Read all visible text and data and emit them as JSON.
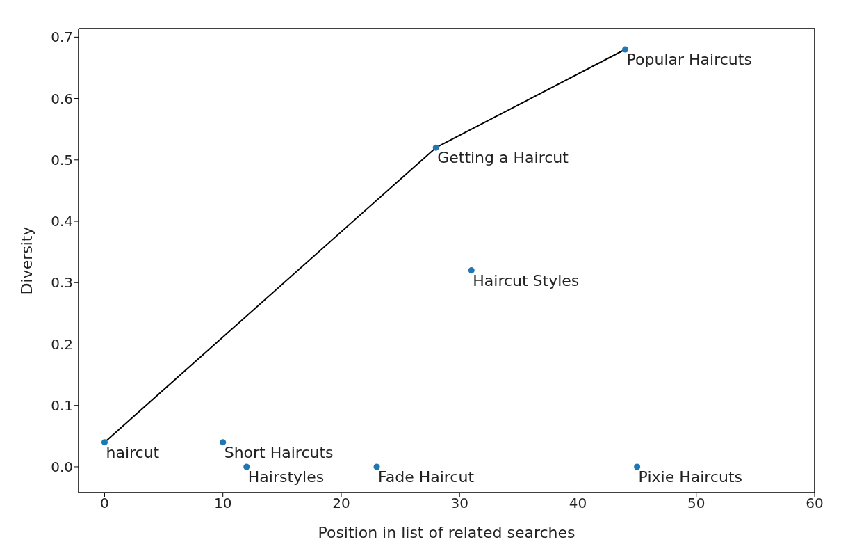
{
  "chart_data": {
    "type": "scatter",
    "xlabel": "Position in list of related searches",
    "ylabel": "Diversity",
    "xlim": [
      -2.2,
      60
    ],
    "xticks": [
      0,
      10,
      20,
      30,
      40,
      50,
      60
    ],
    "ylim": [
      -0.042,
      0.714
    ],
    "yticks": [
      {
        "value": 0,
        "label": "0.0"
      },
      0.1,
      0.2,
      0.3,
      0.4,
      0.5,
      0.6,
      0.7
    ],
    "grid": false,
    "marker": "circle",
    "series": [
      {
        "color": "#1f77b4",
        "x": [
          0,
          10,
          12,
          23,
          28,
          31,
          44,
          45
        ],
        "values": [
          0.04,
          0.04,
          0,
          0,
          0.52,
          0.32,
          0.68,
          0
        ]
      },
      {
        "type": "line",
        "color": "#000000",
        "line_style": "solid",
        "marker": "none",
        "x": [
          0,
          28,
          44
        ],
        "values": [
          0.04,
          0.52,
          0.68
        ]
      }
    ],
    "annotations": [
      {
        "text": "haircut",
        "x": 0,
        "y": 0.04
      },
      {
        "text": "Short Haircuts",
        "x": 10,
        "y": 0.04
      },
      {
        "text": "Hairstyles",
        "x": 12,
        "y": 0
      },
      {
        "text": "Fade Haircut",
        "x": 23,
        "y": 0
      },
      {
        "text": "Getting a Haircut",
        "x": 28,
        "y": 0.52
      },
      {
        "text": "Haircut Styles",
        "x": 31,
        "y": 0.32
      },
      {
        "text": "Popular Haircuts",
        "x": 44,
        "y": 0.68
      },
      {
        "text": "Pixie Haircuts",
        "x": 45,
        "y": 0
      }
    ]
  }
}
